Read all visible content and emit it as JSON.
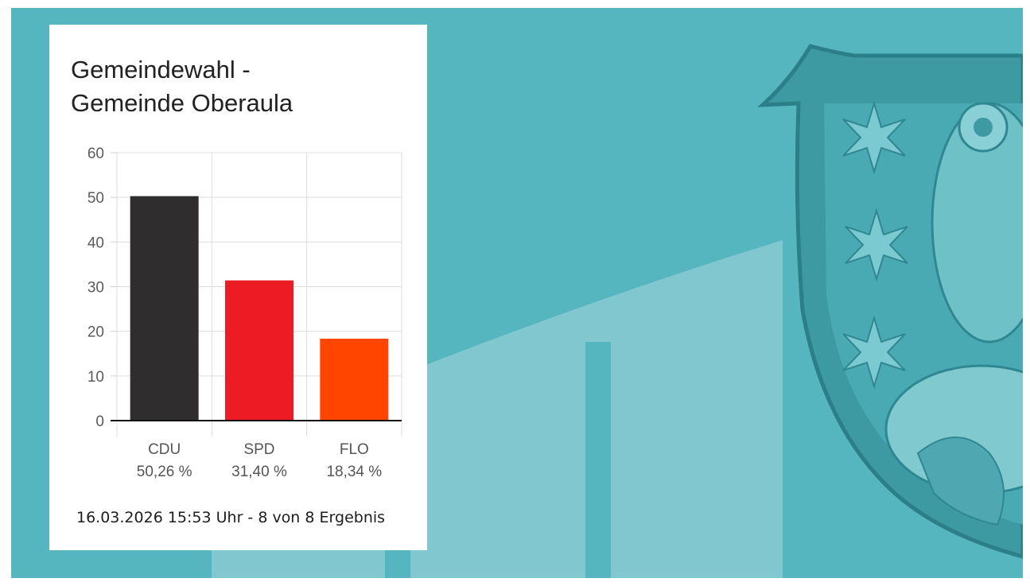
{
  "colors": {
    "background": "#55b6c0",
    "background_light_shape": "#7fc6cd",
    "crest": "#3e9fa8",
    "card": "#ffffff"
  },
  "background_icons": [
    "rising-bars-decoration",
    "coat-of-arms-owl-stars-icon"
  ],
  "chart_data": {
    "type": "bar",
    "title": "Gemeindewahl - Gemeinde Oberaula",
    "title_lines": [
      "Gemeindewahl -",
      "Gemeinde Oberaula"
    ],
    "categories": [
      "CDU",
      "SPD",
      "FLO"
    ],
    "values": [
      50.26,
      31.4,
      18.34
    ],
    "value_labels": [
      "50,26 %",
      "31,40 %",
      "18,34 %"
    ],
    "colors": [
      "#2f2d2e",
      "#ed1c24",
      "#ff4500"
    ],
    "ylim": [
      0,
      60
    ],
    "yticks": [
      0,
      10,
      20,
      30,
      40,
      50,
      60
    ],
    "grid": true,
    "legend": "none",
    "xlabel": "",
    "ylabel": ""
  },
  "footer": {
    "status": "16.03.2026 15:53 Uhr - 8 von 8 Ergebnis"
  }
}
